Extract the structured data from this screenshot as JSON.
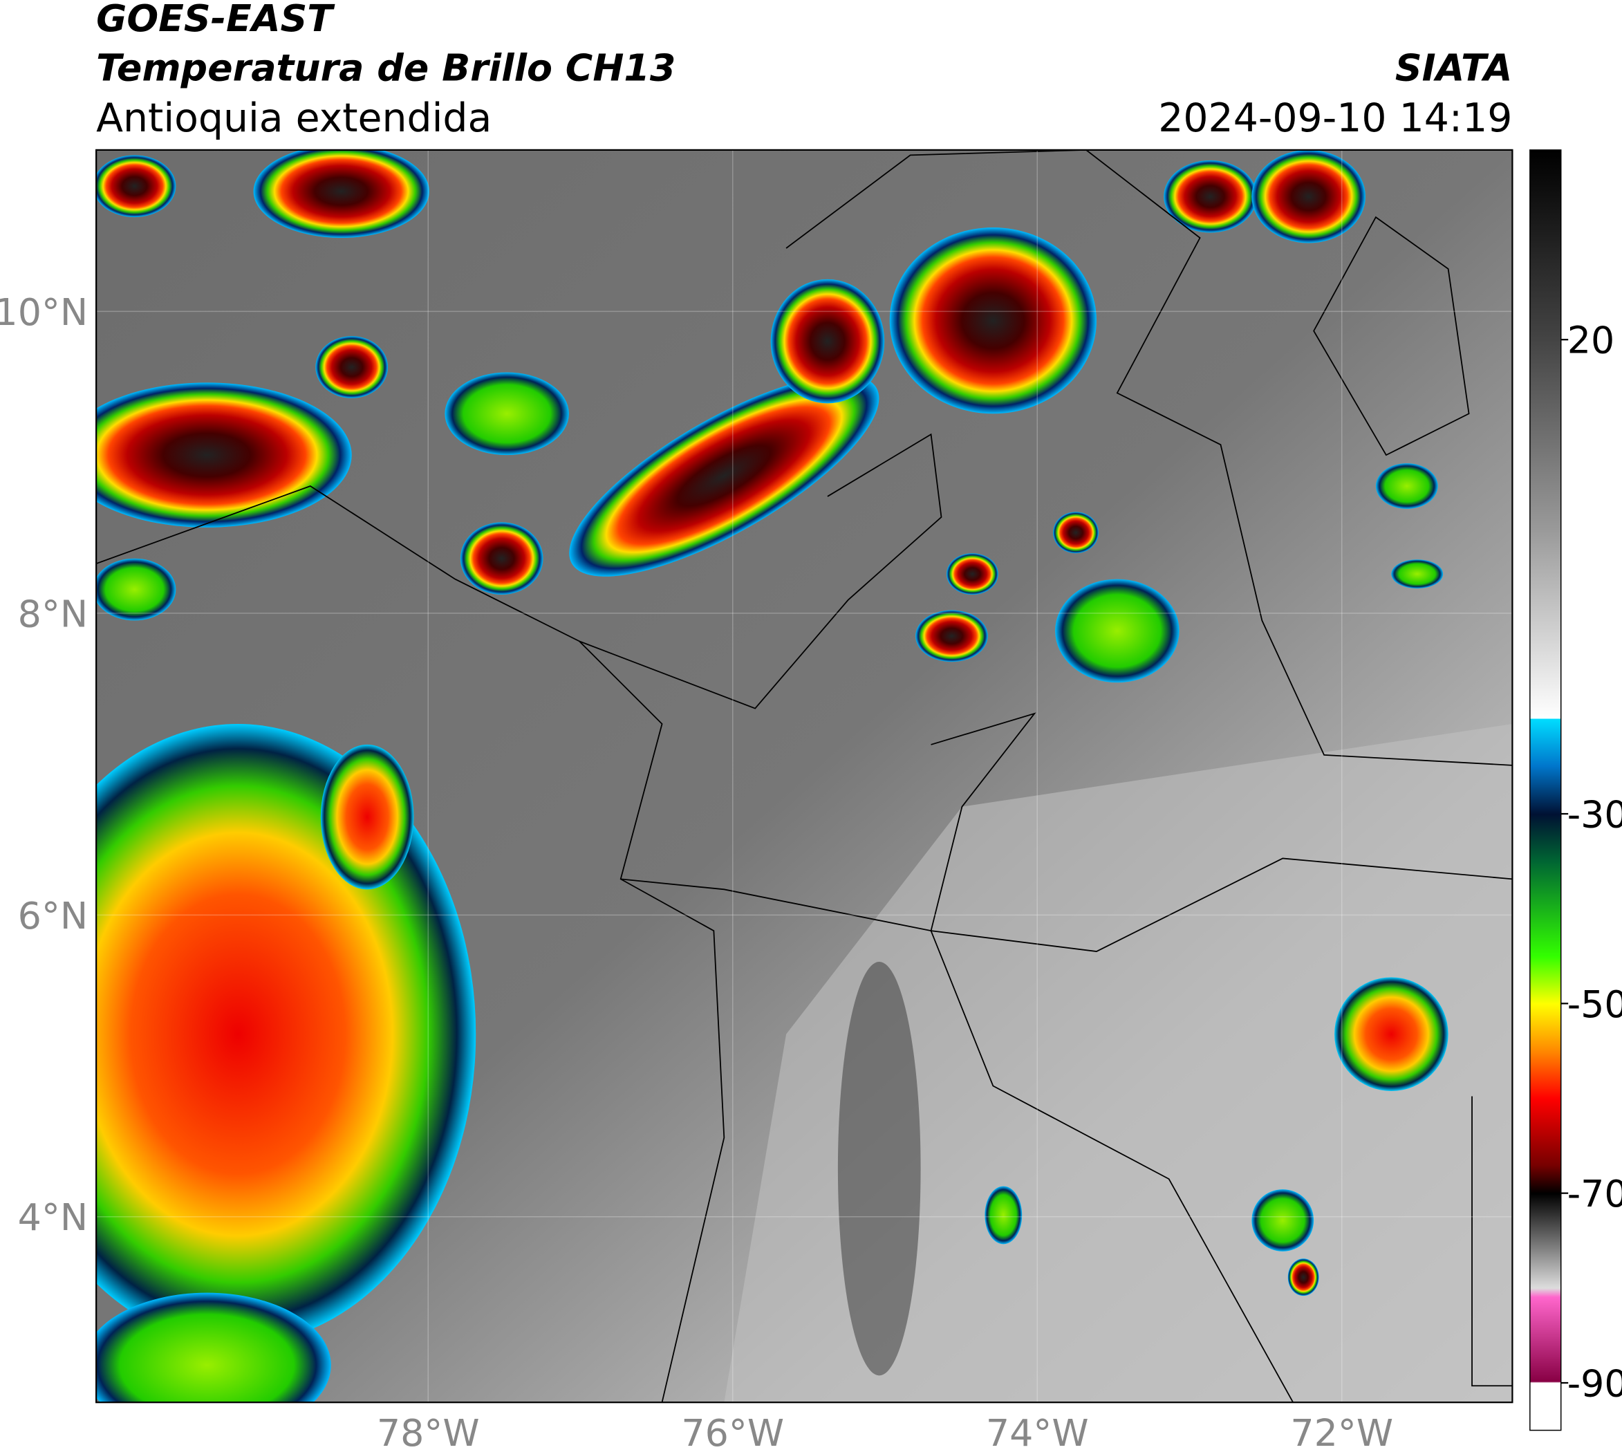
{
  "header": {
    "satellite": "GOES-EAST",
    "product": "Temperatura de Brillo CH13",
    "region": "Antioquia extendida",
    "source": "SIATA",
    "datetime": "2024-09-10 14:19"
  },
  "map": {
    "xlim": [
      -80.18,
      -70.88
    ],
    "ylim": [
      2.77,
      11.07
    ],
    "xticks": [
      {
        "value": -78,
        "label": "78°W"
      },
      {
        "value": -76,
        "label": "76°W"
      },
      {
        "value": -74,
        "label": "74°W"
      },
      {
        "value": -72,
        "label": "72°W"
      }
    ],
    "yticks": [
      {
        "value": 4,
        "label": "4°N"
      },
      {
        "value": 6,
        "label": "6°N"
      },
      {
        "value": 8,
        "label": "8°N"
      },
      {
        "value": 10,
        "label": "10°N"
      }
    ]
  },
  "colorbar": {
    "lim": [
      -95,
      40
    ],
    "ticks": [
      20,
      -30,
      -50,
      -70,
      -90
    ]
  }
}
